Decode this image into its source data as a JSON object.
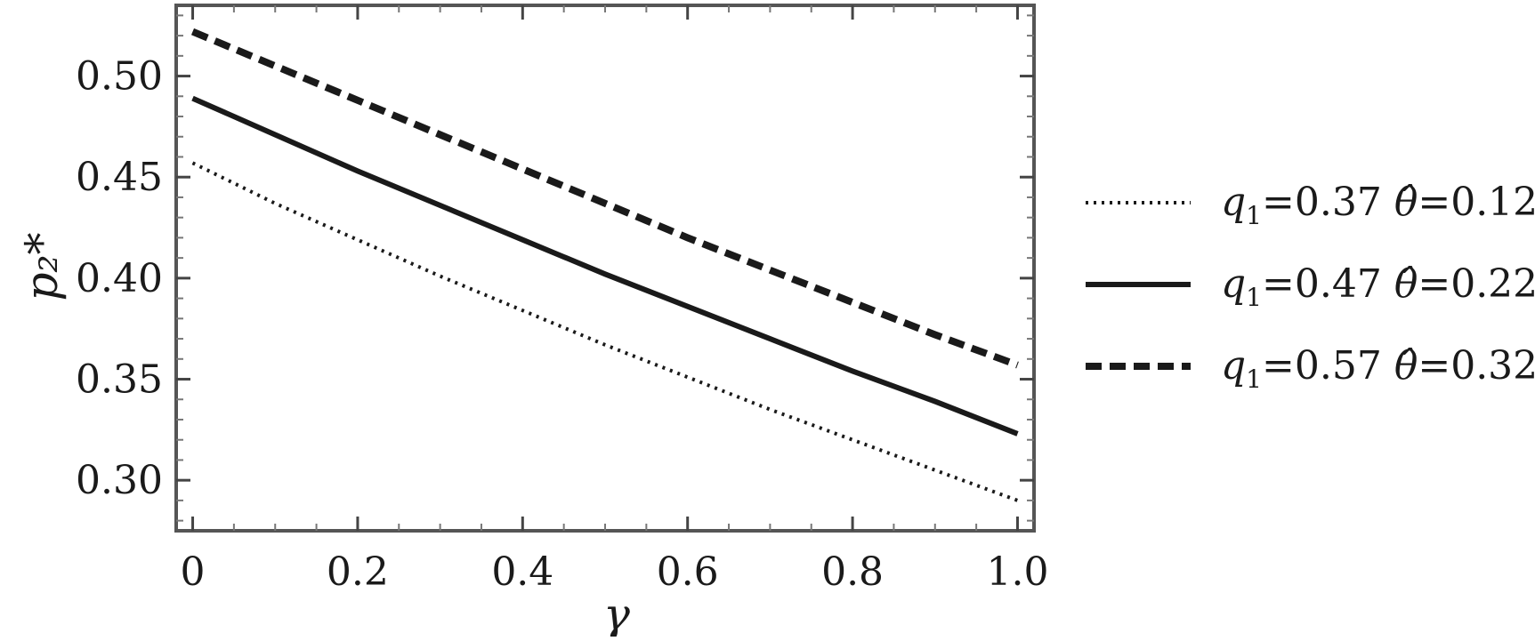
{
  "chart_data": {
    "type": "line",
    "xlabel": "γ",
    "ylabel": "p₂*",
    "xlim": [
      -0.02,
      1.02
    ],
    "ylim": [
      0.275,
      0.535
    ],
    "x_ticks": [
      0,
      0.2,
      0.4,
      0.6,
      0.8,
      1.0
    ],
    "x_tick_labels": [
      "0",
      "0.2",
      "0.4",
      "0.6",
      "0.8",
      "1.0"
    ],
    "y_ticks": [
      0.3,
      0.35,
      0.4,
      0.45,
      0.5
    ],
    "y_tick_labels": [
      "0.30",
      "0.35",
      "0.40",
      "0.45",
      "0.50"
    ],
    "grid": false,
    "legend_position": "right",
    "x": [
      0,
      0.1,
      0.2,
      0.3,
      0.4,
      0.5,
      0.6,
      0.7,
      0.8,
      0.9,
      1.0
    ],
    "series": [
      {
        "name": "q1=0.37 θ̂=0.12",
        "name_parts": {
          "q": "q",
          "sub": "1",
          "qval": "=0.37 ",
          "theta": "θ̂",
          "tval": "=0.12"
        },
        "style": "dotted",
        "values": [
          0.457,
          0.437,
          0.419,
          0.401,
          0.384,
          0.367,
          0.351,
          0.335,
          0.32,
          0.305,
          0.29
        ]
      },
      {
        "name": "q1=0.47 θ̂=0.22",
        "name_parts": {
          "q": "q",
          "sub": "1",
          "qval": "=0.47 ",
          "theta": "θ̂",
          "tval": "=0.22"
        },
        "style": "solid",
        "values": [
          0.489,
          0.471,
          0.453,
          0.436,
          0.419,
          0.402,
          0.386,
          0.37,
          0.354,
          0.339,
          0.323
        ]
      },
      {
        "name": "q1=0.57 θ̂=0.32",
        "name_parts": {
          "q": "q",
          "sub": "1",
          "qval": "=0.57 ",
          "theta": "θ̂",
          "tval": "=0.32"
        },
        "style": "dashed",
        "values": [
          0.522,
          0.505,
          0.488,
          0.471,
          0.454,
          0.437,
          0.42,
          0.404,
          0.388,
          0.372,
          0.357
        ]
      }
    ]
  }
}
